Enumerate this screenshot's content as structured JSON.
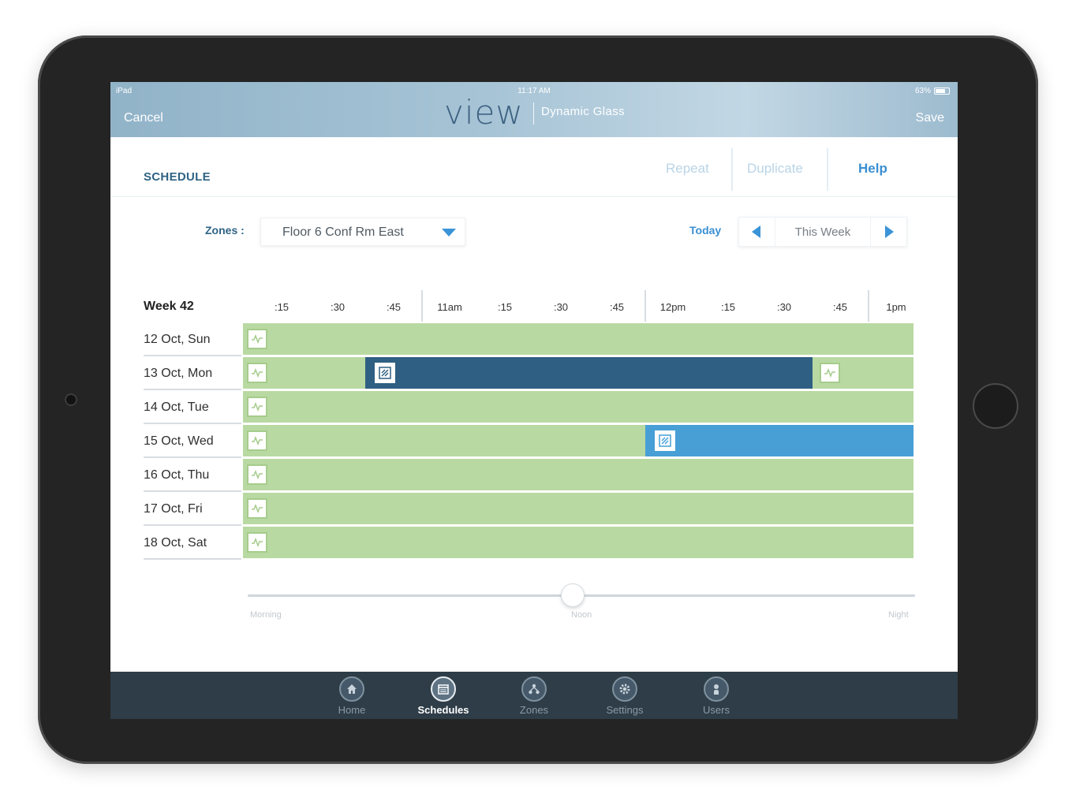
{
  "status_bar": {
    "device": "iPad",
    "time": "11:17 AM",
    "battery": "63%"
  },
  "header": {
    "cancel": "Cancel",
    "logo": "view",
    "subtitle": "Dynamic Glass",
    "save": "Save"
  },
  "toolbar": {
    "title": "SCHEDULE",
    "repeat": "Repeat",
    "duplicate": "Duplicate",
    "help": "Help"
  },
  "filters": {
    "zones_label": "Zones :",
    "zone_value": "Floor 6 Conf Rm East",
    "today": "Today",
    "week_label": "This Week"
  },
  "schedule": {
    "week_title": "Week 42",
    "time_ticks": [
      ":15",
      ":30",
      ":45",
      "11am",
      ":15",
      ":30",
      ":45",
      "12pm",
      ":15",
      ":30",
      ":45",
      "1pm"
    ],
    "days": [
      {
        "label": "12 Oct, Sun"
      },
      {
        "label": "13 Oct, Mon"
      },
      {
        "label": "14 Oct, Tue"
      },
      {
        "label": "15 Oct, Wed"
      },
      {
        "label": "16 Oct, Thu"
      },
      {
        "label": "17 Oct, Fri"
      },
      {
        "label": "18 Oct, Sat"
      }
    ]
  },
  "slider": {
    "left": "Morning",
    "center": "Noon",
    "right": "Night"
  },
  "tabs": [
    {
      "label": "Home",
      "icon": "home-icon"
    },
    {
      "label": "Schedules",
      "icon": "calendar-icon",
      "active": true
    },
    {
      "label": "Zones",
      "icon": "zones-icon"
    },
    {
      "label": "Settings",
      "icon": "gear-icon"
    },
    {
      "label": "Users",
      "icon": "user-icon"
    }
  ],
  "colors": {
    "auto": "#b9d9a2",
    "tint_dark": "#2f5f82",
    "tint_light": "#479fd6",
    "accent": "#3a8fd2"
  }
}
